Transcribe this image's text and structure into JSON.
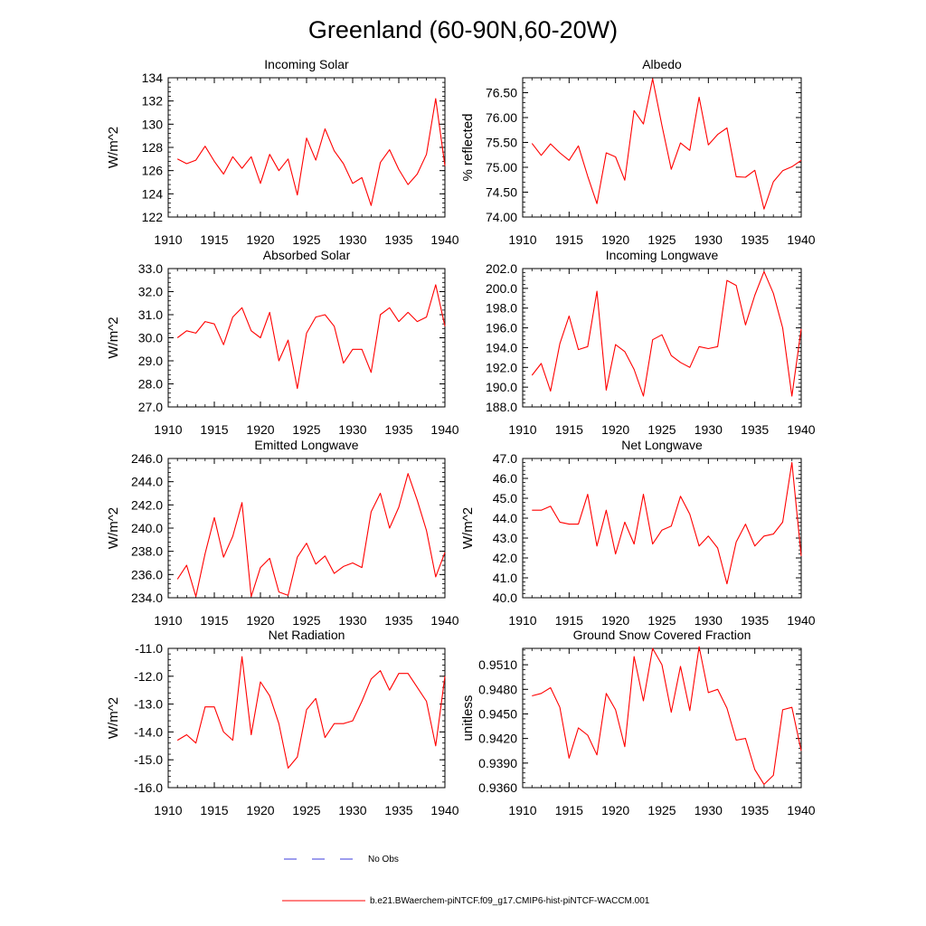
{
  "title": "Greenland (60-90N,60-20W)",
  "legend": [
    {
      "label": "No Obs",
      "color": "#3b3bdc",
      "style": "dashed"
    },
    {
      "label": "b.e21.BWaerchem-piNTCF.f09_g17.CMIP6-hist-piNTCF-WACCM.001",
      "color": "#ff0000",
      "style": "solid"
    }
  ],
  "series_color": "#ff0000",
  "chart_data": [
    {
      "type": "line",
      "title": "Incoming Solar",
      "xlabel": "",
      "ylabel": "W/m^2",
      "xlim": [
        1910,
        1940
      ],
      "xticks": [
        1910,
        1915,
        1920,
        1925,
        1930,
        1935,
        1940
      ],
      "ylim": [
        122,
        134
      ],
      "yticks": [
        122,
        124,
        126,
        128,
        130,
        132,
        134
      ],
      "ytick_labels": [
        "122",
        "124",
        "126",
        "128",
        "130",
        "132",
        "134"
      ],
      "x": [
        1911,
        1912,
        1913,
        1914,
        1915,
        1916,
        1917,
        1918,
        1919,
        1920,
        1921,
        1922,
        1923,
        1924,
        1925,
        1926,
        1927,
        1928,
        1929,
        1930,
        1931,
        1932,
        1933,
        1934,
        1935,
        1936,
        1937,
        1938,
        1939,
        1940
      ],
      "values": [
        127.0,
        126.6,
        126.9,
        128.1,
        126.8,
        125.7,
        127.2,
        126.2,
        127.2,
        124.9,
        127.4,
        126.0,
        127.0,
        123.9,
        128.8,
        126.9,
        129.6,
        127.7,
        126.6,
        124.9,
        125.4,
        123.0,
        126.7,
        127.8,
        126.1,
        124.8,
        125.7,
        127.4,
        132.2,
        126.4
      ]
    },
    {
      "type": "line",
      "title": "Albedo",
      "xlabel": "",
      "ylabel": "% reflected",
      "xlim": [
        1910,
        1940
      ],
      "xticks": [
        1910,
        1915,
        1920,
        1925,
        1930,
        1935,
        1940
      ],
      "ylim": [
        74.0,
        76.8
      ],
      "yticks": [
        74.0,
        74.5,
        75.0,
        75.5,
        76.0,
        76.5
      ],
      "ytick_labels": [
        "74.00",
        "74.50",
        "75.00",
        "75.50",
        "76.00",
        "76.50"
      ],
      "x": [
        1911,
        1912,
        1913,
        1914,
        1915,
        1916,
        1917,
        1918,
        1919,
        1920,
        1921,
        1922,
        1923,
        1924,
        1925,
        1926,
        1927,
        1928,
        1929,
        1930,
        1931,
        1932,
        1933,
        1934,
        1935,
        1936,
        1937,
        1938,
        1939,
        1940
      ],
      "values": [
        75.48,
        75.24,
        75.47,
        75.29,
        75.14,
        75.43,
        74.82,
        74.27,
        75.29,
        75.21,
        74.74,
        76.14,
        75.87,
        76.78,
        75.84,
        74.96,
        75.49,
        75.34,
        76.41,
        75.45,
        75.66,
        75.79,
        74.81,
        74.8,
        74.94,
        74.16,
        74.71,
        74.93,
        75.01,
        75.14
      ]
    },
    {
      "type": "line",
      "title": "Absorbed Solar",
      "xlabel": "",
      "ylabel": "W/m^2",
      "xlim": [
        1910,
        1940
      ],
      "xticks": [
        1910,
        1915,
        1920,
        1925,
        1930,
        1935,
        1940
      ],
      "ylim": [
        27.0,
        33.0
      ],
      "yticks": [
        27,
        28,
        29,
        30,
        31,
        32,
        33
      ],
      "ytick_labels": [
        "27.0",
        "28.0",
        "29.0",
        "30.0",
        "31.0",
        "32.0",
        "33.0"
      ],
      "x": [
        1911,
        1912,
        1913,
        1914,
        1915,
        1916,
        1917,
        1918,
        1919,
        1920,
        1921,
        1922,
        1923,
        1924,
        1925,
        1926,
        1927,
        1928,
        1929,
        1930,
        1931,
        1932,
        1933,
        1934,
        1935,
        1936,
        1937,
        1938,
        1939,
        1940
      ],
      "values": [
        30.0,
        30.3,
        30.2,
        30.7,
        30.6,
        29.7,
        30.9,
        31.3,
        30.3,
        30.0,
        31.1,
        29.0,
        29.9,
        27.8,
        30.2,
        30.9,
        31.0,
        30.5,
        28.9,
        29.5,
        29.5,
        28.5,
        31.0,
        31.3,
        30.7,
        31.1,
        30.7,
        30.9,
        32.3,
        30.5
      ]
    },
    {
      "type": "line",
      "title": "Incoming Longwave",
      "xlabel": "",
      "ylabel": "",
      "xlim": [
        1910,
        1940
      ],
      "xticks": [
        1910,
        1915,
        1920,
        1925,
        1930,
        1935,
        1940
      ],
      "ylim": [
        188.0,
        202.0
      ],
      "yticks": [
        188,
        190,
        192,
        194,
        196,
        198,
        200,
        202
      ],
      "ytick_labels": [
        "188.0",
        "190.0",
        "192.0",
        "194.0",
        "196.0",
        "198.0",
        "200.0",
        "202.0"
      ],
      "x": [
        1911,
        1912,
        1913,
        1914,
        1915,
        1916,
        1917,
        1918,
        1919,
        1920,
        1921,
        1922,
        1923,
        1924,
        1925,
        1926,
        1927,
        1928,
        1929,
        1930,
        1931,
        1932,
        1933,
        1934,
        1935,
        1936,
        1937,
        1938,
        1939,
        1940
      ],
      "values": [
        191.2,
        192.4,
        189.6,
        194.4,
        197.2,
        193.8,
        194.1,
        199.7,
        189.7,
        194.3,
        193.6,
        191.8,
        189.1,
        194.8,
        195.3,
        193.2,
        192.5,
        192.0,
        194.1,
        193.9,
        194.1,
        200.8,
        200.3,
        196.3,
        199.3,
        201.7,
        199.5,
        196.0,
        189.1,
        195.9
      ]
    },
    {
      "type": "line",
      "title": "Emitted Longwave",
      "xlabel": "",
      "ylabel": "W/m^2",
      "xlim": [
        1910,
        1940
      ],
      "xticks": [
        1910,
        1915,
        1920,
        1925,
        1930,
        1935,
        1940
      ],
      "ylim": [
        234.0,
        246.0
      ],
      "yticks": [
        234,
        236,
        238,
        240,
        242,
        244,
        246
      ],
      "ytick_labels": [
        "234.0",
        "236.0",
        "238.0",
        "240.0",
        "242.0",
        "244.0",
        "246.0"
      ],
      "x": [
        1911,
        1912,
        1913,
        1914,
        1915,
        1916,
        1917,
        1918,
        1919,
        1920,
        1921,
        1922,
        1923,
        1924,
        1925,
        1926,
        1927,
        1928,
        1929,
        1930,
        1931,
        1932,
        1933,
        1934,
        1935,
        1936,
        1937,
        1938,
        1939,
        1940
      ],
      "values": [
        235.6,
        236.8,
        234.1,
        237.8,
        240.9,
        237.5,
        239.3,
        242.2,
        234.1,
        236.6,
        237.4,
        234.5,
        234.2,
        237.5,
        238.7,
        236.9,
        237.6,
        236.1,
        236.7,
        237.0,
        236.6,
        241.4,
        243.0,
        240.0,
        241.8,
        244.7,
        242.4,
        239.8,
        235.8,
        237.9
      ]
    },
    {
      "type": "line",
      "title": "Net Longwave",
      "xlabel": "",
      "ylabel": "W/m^2",
      "xlim": [
        1910,
        1940
      ],
      "xticks": [
        1910,
        1915,
        1920,
        1925,
        1930,
        1935,
        1940
      ],
      "ylim": [
        40.0,
        47.0
      ],
      "yticks": [
        40,
        41,
        42,
        43,
        44,
        45,
        46,
        47
      ],
      "ytick_labels": [
        "40.0",
        "41.0",
        "42.0",
        "43.0",
        "44.0",
        "45.0",
        "46.0",
        "47.0"
      ],
      "x": [
        1911,
        1912,
        1913,
        1914,
        1915,
        1916,
        1917,
        1918,
        1919,
        1920,
        1921,
        1922,
        1923,
        1924,
        1925,
        1926,
        1927,
        1928,
        1929,
        1930,
        1931,
        1932,
        1933,
        1934,
        1935,
        1936,
        1937,
        1938,
        1939,
        1940
      ],
      "values": [
        44.4,
        44.4,
        44.6,
        43.8,
        43.7,
        43.7,
        45.2,
        42.6,
        44.4,
        42.2,
        43.8,
        42.7,
        45.2,
        42.7,
        43.4,
        43.6,
        45.1,
        44.2,
        42.6,
        43.1,
        42.5,
        40.7,
        42.8,
        43.7,
        42.6,
        43.1,
        43.2,
        43.8,
        46.8,
        42.1
      ]
    },
    {
      "type": "line",
      "title": "Net Radiation",
      "xlabel": "",
      "ylabel": "W/m^2",
      "xlim": [
        1910,
        1940
      ],
      "xticks": [
        1910,
        1915,
        1920,
        1925,
        1930,
        1935,
        1940
      ],
      "ylim": [
        -16.0,
        -11.0
      ],
      "yticks": [
        -16,
        -15,
        -14,
        -13,
        -12,
        -11
      ],
      "ytick_labels": [
        "-16.0",
        "-15.0",
        "-14.0",
        "-13.0",
        "-12.0",
        "-11.0"
      ],
      "x": [
        1911,
        1912,
        1913,
        1914,
        1915,
        1916,
        1917,
        1918,
        1919,
        1920,
        1921,
        1922,
        1923,
        1924,
        1925,
        1926,
        1927,
        1928,
        1929,
        1930,
        1931,
        1932,
        1933,
        1934,
        1935,
        1936,
        1937,
        1938,
        1939,
        1940
      ],
      "values": [
        -14.3,
        -14.1,
        -14.4,
        -13.1,
        -13.1,
        -14.0,
        -14.3,
        -11.3,
        -14.1,
        -12.2,
        -12.7,
        -13.7,
        -15.3,
        -14.9,
        -13.2,
        -12.8,
        -14.2,
        -13.7,
        -13.7,
        -13.6,
        -12.9,
        -12.1,
        -11.8,
        -12.5,
        -11.9,
        -11.9,
        -12.4,
        -12.9,
        -14.5,
        -12.0
      ]
    },
    {
      "type": "line",
      "title": "Ground Snow Covered Fraction",
      "xlabel": "",
      "ylabel": "unitless",
      "xlim": [
        1910,
        1940
      ],
      "xticks": [
        1910,
        1915,
        1920,
        1925,
        1930,
        1935,
        1940
      ],
      "ylim": [
        0.936,
        0.953
      ],
      "yticks": [
        0.936,
        0.939,
        0.942,
        0.945,
        0.948,
        0.951
      ],
      "ytick_labels": [
        "0.9360",
        "0.9390",
        "0.9420",
        "0.9450",
        "0.9480",
        "0.9510"
      ],
      "x": [
        1911,
        1912,
        1913,
        1914,
        1915,
        1916,
        1917,
        1918,
        1919,
        1920,
        1921,
        1922,
        1923,
        1924,
        1925,
        1926,
        1927,
        1928,
        1929,
        1930,
        1931,
        1932,
        1933,
        1934,
        1935,
        1936,
        1937,
        1938,
        1939,
        1940
      ],
      "values": [
        0.9472,
        0.9475,
        0.9482,
        0.9458,
        0.9396,
        0.9433,
        0.9424,
        0.94,
        0.9475,
        0.9455,
        0.941,
        0.952,
        0.9466,
        0.953,
        0.951,
        0.9452,
        0.9508,
        0.9454,
        0.9532,
        0.9476,
        0.948,
        0.9457,
        0.9418,
        0.942,
        0.9382,
        0.9364,
        0.9375,
        0.9455,
        0.9458,
        0.9405
      ]
    }
  ]
}
